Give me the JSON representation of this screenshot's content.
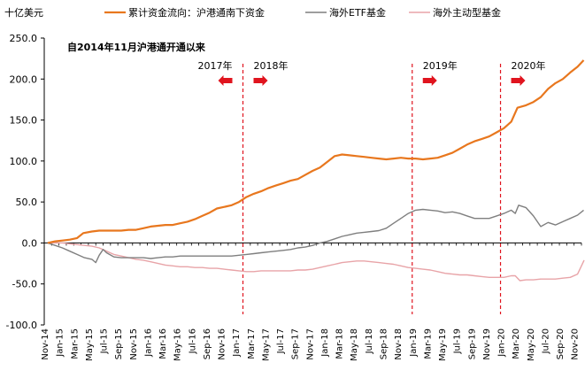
{
  "chart_data": {
    "type": "line",
    "y_unit": "十亿美元",
    "annotation": "自2014年11月沪港通开通以来",
    "ylim": [
      -100,
      250
    ],
    "yticks": [
      "250.0",
      "200.0",
      "150.0",
      "100.0",
      "50.0",
      "0.0",
      "-50.0",
      "-100.0"
    ],
    "xlim": [
      "2014-11",
      "2020-12"
    ],
    "x_tick_labels": [
      "Nov-14",
      "Jan-15",
      "Mar-15",
      "May-15",
      "Jul-15",
      "Sep-15",
      "Nov-15",
      "Jan-16",
      "Mar-16",
      "May-16",
      "Jul-16",
      "Sep-16",
      "Nov-16",
      "Jan-17",
      "Mar-17",
      "May-17",
      "Jul-17",
      "Sep-17",
      "Nov-17",
      "Jan-18",
      "Mar-18",
      "May-18",
      "Jul-18",
      "Sep-18",
      "Nov-18",
      "Jan-19",
      "Mar-19",
      "May-19",
      "Jul-19",
      "Sep-19",
      "Nov-19",
      "Jan-20",
      "Mar-20",
      "May-20",
      "Jul-20",
      "Sep-20",
      "Nov-20"
    ],
    "legend_position": "top",
    "grid": false,
    "colors": {
      "cumulative": "#e8771e",
      "etf": "#7f7f7f",
      "active": "#e8a4a8",
      "marker": "#e0141e"
    },
    "year_markers": [
      {
        "date": "2017-02",
        "left_label": "2017年",
        "right_label": "2018年"
      },
      {
        "date": "2019-01",
        "right_label": "2019年"
      },
      {
        "date": "2020-01",
        "right_label": "2020年"
      }
    ],
    "series": [
      {
        "name": "累计资金流向：沪港通南下资金",
        "key": "cumulative",
        "points": [
          [
            "2014-11-15",
            0
          ],
          [
            "2014-12-15",
            2
          ],
          [
            "2015-01-15",
            3
          ],
          [
            "2015-02-15",
            4
          ],
          [
            "2015-03-15",
            6
          ],
          [
            "2015-04-10",
            12
          ],
          [
            "2015-05-15",
            14
          ],
          [
            "2015-06-15",
            15
          ],
          [
            "2015-07-15",
            15
          ],
          [
            "2015-08-15",
            15
          ],
          [
            "2015-09-15",
            15
          ],
          [
            "2015-10-15",
            16
          ],
          [
            "2015-11-15",
            16
          ],
          [
            "2015-12-15",
            18
          ],
          [
            "2016-01-15",
            20
          ],
          [
            "2016-02-15",
            21
          ],
          [
            "2016-03-15",
            22
          ],
          [
            "2016-04-15",
            22
          ],
          [
            "2016-05-15",
            24
          ],
          [
            "2016-06-15",
            26
          ],
          [
            "2016-07-15",
            29
          ],
          [
            "2016-08-15",
            33
          ],
          [
            "2016-09-15",
            37
          ],
          [
            "2016-10-15",
            42
          ],
          [
            "2016-11-15",
            44
          ],
          [
            "2016-12-15",
            46
          ],
          [
            "2017-01-15",
            50
          ],
          [
            "2017-02-15",
            56
          ],
          [
            "2017-03-15",
            60
          ],
          [
            "2017-04-15",
            63
          ],
          [
            "2017-05-15",
            67
          ],
          [
            "2017-06-15",
            70
          ],
          [
            "2017-07-15",
            73
          ],
          [
            "2017-08-15",
            76
          ],
          [
            "2017-09-15",
            78
          ],
          [
            "2017-10-15",
            83
          ],
          [
            "2017-11-15",
            88
          ],
          [
            "2017-12-15",
            92
          ],
          [
            "2018-01-15",
            99
          ],
          [
            "2018-02-15",
            106
          ],
          [
            "2018-03-15",
            108
          ],
          [
            "2018-04-15",
            107
          ],
          [
            "2018-05-15",
            106
          ],
          [
            "2018-06-15",
            105
          ],
          [
            "2018-07-15",
            104
          ],
          [
            "2018-08-15",
            103
          ],
          [
            "2018-09-15",
            102
          ],
          [
            "2018-10-15",
            103
          ],
          [
            "2018-11-15",
            104
          ],
          [
            "2018-12-15",
            103
          ],
          [
            "2019-01-15",
            103
          ],
          [
            "2019-02-15",
            102
          ],
          [
            "2019-03-15",
            103
          ],
          [
            "2019-04-15",
            104
          ],
          [
            "2019-05-15",
            107
          ],
          [
            "2019-06-15",
            110
          ],
          [
            "2019-07-15",
            115
          ],
          [
            "2019-08-15",
            120
          ],
          [
            "2019-09-15",
            124
          ],
          [
            "2019-10-15",
            127
          ],
          [
            "2019-11-15",
            130
          ],
          [
            "2019-12-15",
            135
          ],
          [
            "2020-01-15",
            140
          ],
          [
            "2020-02-15",
            148
          ],
          [
            "2020-03-10",
            165
          ],
          [
            "2020-04-15",
            168
          ],
          [
            "2020-05-15",
            172
          ],
          [
            "2020-06-15",
            178
          ],
          [
            "2020-07-15",
            188
          ],
          [
            "2020-08-15",
            195
          ],
          [
            "2020-09-15",
            200
          ],
          [
            "2020-10-15",
            208
          ],
          [
            "2020-11-15",
            215
          ],
          [
            "2020-12-10",
            223
          ]
        ]
      },
      {
        "name": "海外ETF基金",
        "key": "etf",
        "points": [
          [
            "2014-11-15",
            0
          ],
          [
            "2014-12-15",
            -3
          ],
          [
            "2015-01-15",
            -6
          ],
          [
            "2015-02-15",
            -10
          ],
          [
            "2015-03-15",
            -14
          ],
          [
            "2015-04-15",
            -18
          ],
          [
            "2015-05-15",
            -20
          ],
          [
            "2015-06-01",
            -24
          ],
          [
            "2015-06-15",
            -15
          ],
          [
            "2015-07-01",
            -8
          ],
          [
            "2015-07-15",
            -12
          ],
          [
            "2015-08-15",
            -17
          ],
          [
            "2015-09-15",
            -18
          ],
          [
            "2015-10-15",
            -18
          ],
          [
            "2015-11-15",
            -18
          ],
          [
            "2015-12-15",
            -18
          ],
          [
            "2016-01-15",
            -19
          ],
          [
            "2016-02-15",
            -18
          ],
          [
            "2016-03-15",
            -17
          ],
          [
            "2016-04-15",
            -17
          ],
          [
            "2016-05-15",
            -16
          ],
          [
            "2016-06-15",
            -16
          ],
          [
            "2016-07-15",
            -16
          ],
          [
            "2016-08-15",
            -16
          ],
          [
            "2016-09-15",
            -16
          ],
          [
            "2016-10-15",
            -16
          ],
          [
            "2016-11-15",
            -16
          ],
          [
            "2016-12-15",
            -16
          ],
          [
            "2017-01-15",
            -15
          ],
          [
            "2017-02-15",
            -14
          ],
          [
            "2017-03-15",
            -13
          ],
          [
            "2017-04-15",
            -12
          ],
          [
            "2017-05-15",
            -11
          ],
          [
            "2017-06-15",
            -10
          ],
          [
            "2017-07-15",
            -9
          ],
          [
            "2017-08-15",
            -8
          ],
          [
            "2017-09-15",
            -6
          ],
          [
            "2017-10-15",
            -5
          ],
          [
            "2017-11-15",
            -3
          ],
          [
            "2017-12-15",
            0
          ],
          [
            "2018-01-15",
            2
          ],
          [
            "2018-02-15",
            5
          ],
          [
            "2018-03-15",
            8
          ],
          [
            "2018-04-15",
            10
          ],
          [
            "2018-05-15",
            12
          ],
          [
            "2018-06-15",
            13
          ],
          [
            "2018-07-15",
            14
          ],
          [
            "2018-08-15",
            15
          ],
          [
            "2018-09-15",
            18
          ],
          [
            "2018-10-15",
            24
          ],
          [
            "2018-11-15",
            30
          ],
          [
            "2018-12-15",
            36
          ],
          [
            "2019-01-15",
            40
          ],
          [
            "2019-02-15",
            41
          ],
          [
            "2019-03-15",
            40
          ],
          [
            "2019-04-15",
            39
          ],
          [
            "2019-05-15",
            37
          ],
          [
            "2019-06-15",
            38
          ],
          [
            "2019-07-15",
            36
          ],
          [
            "2019-08-15",
            33
          ],
          [
            "2019-09-15",
            30
          ],
          [
            "2019-10-15",
            30
          ],
          [
            "2019-11-15",
            30
          ],
          [
            "2019-12-15",
            33
          ],
          [
            "2020-01-15",
            36
          ],
          [
            "2020-02-15",
            40
          ],
          [
            "2020-03-01",
            36
          ],
          [
            "2020-03-15",
            46
          ],
          [
            "2020-04-15",
            43
          ],
          [
            "2020-05-15",
            33
          ],
          [
            "2020-06-15",
            20
          ],
          [
            "2020-07-15",
            25
          ],
          [
            "2020-08-15",
            22
          ],
          [
            "2020-09-15",
            26
          ],
          [
            "2020-10-15",
            30
          ],
          [
            "2020-11-15",
            34
          ],
          [
            "2020-12-10",
            40
          ]
        ]
      },
      {
        "name": "海外主动型基金",
        "key": "active",
        "points": [
          [
            "2014-11-15",
            0
          ],
          [
            "2014-12-15",
            0
          ],
          [
            "2015-01-15",
            0
          ],
          [
            "2015-02-15",
            -1
          ],
          [
            "2015-03-15",
            -2
          ],
          [
            "2015-04-15",
            -3
          ],
          [
            "2015-05-15",
            -4
          ],
          [
            "2015-06-15",
            -6
          ],
          [
            "2015-07-15",
            -10
          ],
          [
            "2015-08-15",
            -14
          ],
          [
            "2015-09-15",
            -16
          ],
          [
            "2015-10-15",
            -18
          ],
          [
            "2015-11-15",
            -20
          ],
          [
            "2015-12-15",
            -21
          ],
          [
            "2016-01-15",
            -23
          ],
          [
            "2016-02-15",
            -25
          ],
          [
            "2016-03-15",
            -27
          ],
          [
            "2016-04-15",
            -28
          ],
          [
            "2016-05-15",
            -29
          ],
          [
            "2016-06-15",
            -29
          ],
          [
            "2016-07-15",
            -30
          ],
          [
            "2016-08-15",
            -30
          ],
          [
            "2016-09-15",
            -31
          ],
          [
            "2016-10-15",
            -31
          ],
          [
            "2016-11-15",
            -32
          ],
          [
            "2016-12-15",
            -33
          ],
          [
            "2017-01-15",
            -34
          ],
          [
            "2017-02-15",
            -35
          ],
          [
            "2017-03-15",
            -35
          ],
          [
            "2017-04-15",
            -34
          ],
          [
            "2017-05-15",
            -34
          ],
          [
            "2017-06-15",
            -34
          ],
          [
            "2017-07-15",
            -34
          ],
          [
            "2017-08-15",
            -34
          ],
          [
            "2017-09-15",
            -33
          ],
          [
            "2017-10-15",
            -33
          ],
          [
            "2017-11-15",
            -32
          ],
          [
            "2017-12-15",
            -30
          ],
          [
            "2018-01-15",
            -28
          ],
          [
            "2018-02-15",
            -26
          ],
          [
            "2018-03-15",
            -24
          ],
          [
            "2018-04-15",
            -23
          ],
          [
            "2018-05-15",
            -22
          ],
          [
            "2018-06-15",
            -22
          ],
          [
            "2018-07-15",
            -23
          ],
          [
            "2018-08-15",
            -24
          ],
          [
            "2018-09-15",
            -25
          ],
          [
            "2018-10-15",
            -26
          ],
          [
            "2018-11-15",
            -28
          ],
          [
            "2018-12-15",
            -30
          ],
          [
            "2019-01-15",
            -31
          ],
          [
            "2019-02-15",
            -32
          ],
          [
            "2019-03-15",
            -33
          ],
          [
            "2019-04-15",
            -35
          ],
          [
            "2019-05-15",
            -37
          ],
          [
            "2019-06-15",
            -38
          ],
          [
            "2019-07-15",
            -39
          ],
          [
            "2019-08-15",
            -39
          ],
          [
            "2019-09-15",
            -40
          ],
          [
            "2019-10-15",
            -41
          ],
          [
            "2019-11-15",
            -42
          ],
          [
            "2019-12-15",
            -42
          ],
          [
            "2020-01-15",
            -42
          ],
          [
            "2020-02-15",
            -40
          ],
          [
            "2020-03-01",
            -40
          ],
          [
            "2020-03-20",
            -46
          ],
          [
            "2020-04-15",
            -45
          ],
          [
            "2020-05-15",
            -45
          ],
          [
            "2020-06-15",
            -44
          ],
          [
            "2020-07-15",
            -44
          ],
          [
            "2020-08-15",
            -44
          ],
          [
            "2020-09-15",
            -43
          ],
          [
            "2020-10-15",
            -42
          ],
          [
            "2020-11-15",
            -38
          ],
          [
            "2020-12-01",
            -28
          ],
          [
            "2020-12-12",
            -21
          ]
        ]
      }
    ]
  }
}
